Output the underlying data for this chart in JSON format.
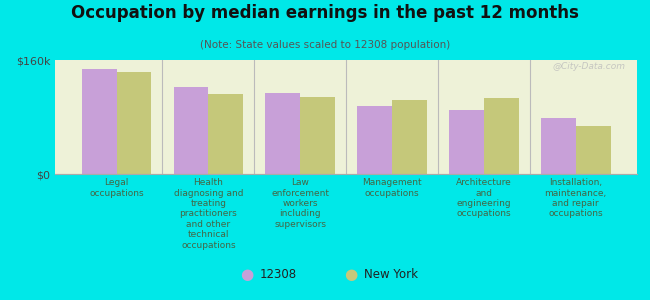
{
  "title": "Occupation by median earnings in the past 12 months",
  "subtitle": "(Note: State values scaled to 12308 population)",
  "background_color": "#00e8e8",
  "plot_bg_color": "#eef2d8",
  "categories": [
    "Legal\noccupations",
    "Health\ndiagnosing and\ntreating\npractitioners\nand other\ntechnical\noccupations",
    "Law\nenforcement\nworkers\nincluding\nsupervisors",
    "Management\noccupations",
    "Architecture\nand\nengineering\noccupations",
    "Installation,\nmaintenance,\nand repair\noccupations"
  ],
  "values_12308": [
    148000,
    122000,
    113000,
    96000,
    90000,
    78000
  ],
  "values_ny": [
    143000,
    112000,
    108000,
    104000,
    107000,
    68000
  ],
  "ylim": [
    0,
    160000
  ],
  "ytick_labels": [
    "$0",
    "$160k"
  ],
  "ytick_vals": [
    0,
    160000
  ],
  "color_12308": "#c8a0d8",
  "color_ny": "#c5c87a",
  "legend_labels": [
    "12308",
    "New York"
  ],
  "bar_width": 0.38,
  "watermark": "@City-Data.com"
}
